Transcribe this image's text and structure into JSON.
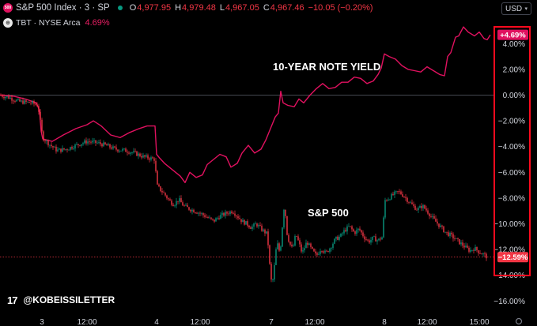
{
  "header": {
    "main_symbol": {
      "badge_label": "500",
      "title": "S&P 500 Index · 3 · SP",
      "status_color": "#089981",
      "open_label": "O",
      "open": "4,977.95",
      "high_label": "H",
      "high": "4,979.48",
      "low_label": "L",
      "low": "4,967.05",
      "close_label": "C",
      "close": "4,967.46",
      "change": "−10.05 (−0.20%)"
    },
    "compare_symbol": {
      "badge_label": "⊕",
      "title": "TBT · NYSE Arca",
      "change": "4.69%"
    },
    "currency": "USD",
    "currency_chevron": "chevron-down-icon"
  },
  "watermark": {
    "logo_text": "17",
    "handle": "@KOBEISSILETTER"
  },
  "chart_data": {
    "type": "line",
    "x": [
      "3",
      "12:00",
      "4",
      "12:00",
      "7",
      "12:00",
      "8",
      "12:00",
      "15:00"
    ],
    "ylim": [
      -17,
      5.5
    ],
    "yticks": [
      "4.00%",
      "2.00%",
      "0.00%",
      "−2.00%",
      "−4.00%",
      "−6.00%",
      "−8.00%",
      "−10.00%",
      "−12.00%",
      "−14.00%",
      "−16.00%"
    ],
    "grid": false,
    "colors": {
      "tbt": "#e0115f",
      "spx_up": "#089981",
      "spx_down": "#f23645",
      "highlight": "#ff0a1e"
    },
    "series": [
      {
        "label": "10-YEAR NOTE YIELD",
        "last_label": "+4.69%",
        "points": [
          [
            0,
            0.0
          ],
          [
            18,
            -0.1
          ],
          [
            32,
            -0.3
          ],
          [
            46,
            -0.6
          ],
          [
            50,
            -1.2
          ],
          [
            52,
            -2.8
          ],
          [
            54,
            -3.4
          ],
          [
            66,
            -3.6
          ],
          [
            80,
            -3.1
          ],
          [
            96,
            -2.6
          ],
          [
            110,
            -2.3
          ],
          [
            118,
            -2.0
          ],
          [
            128,
            -2.4
          ],
          [
            140,
            -3.1
          ],
          [
            152,
            -3.3
          ],
          [
            164,
            -2.9
          ],
          [
            176,
            -2.6
          ],
          [
            186,
            -2.4
          ],
          [
            196,
            -2.4
          ],
          [
            198,
            -4.6
          ],
          [
            202,
            -4.9
          ],
          [
            208,
            -5.3
          ],
          [
            214,
            -5.6
          ],
          [
            220,
            -5.9
          ],
          [
            228,
            -6.3
          ],
          [
            234,
            -6.8
          ],
          [
            240,
            -6.0
          ],
          [
            248,
            -6.4
          ],
          [
            256,
            -6.2
          ],
          [
            262,
            -5.4
          ],
          [
            270,
            -5.0
          ],
          [
            278,
            -4.6
          ],
          [
            286,
            -4.8
          ],
          [
            292,
            -5.6
          ],
          [
            300,
            -5.3
          ],
          [
            306,
            -4.5
          ],
          [
            314,
            -3.9
          ],
          [
            322,
            -4.5
          ],
          [
            330,
            -4.2
          ],
          [
            336,
            -3.5
          ],
          [
            342,
            -2.6
          ],
          [
            348,
            -1.7
          ],
          [
            352,
            -1.4
          ],
          [
            355,
            0.3
          ],
          [
            358,
            -0.6
          ],
          [
            364,
            -0.8
          ],
          [
            372,
            -0.9
          ],
          [
            378,
            -0.3
          ],
          [
            384,
            -0.6
          ],
          [
            392,
            0.0
          ],
          [
            400,
            0.5
          ],
          [
            408,
            0.9
          ],
          [
            416,
            0.5
          ],
          [
            424,
            0.6
          ],
          [
            432,
            1.0
          ],
          [
            440,
            1.0
          ],
          [
            448,
            1.4
          ],
          [
            456,
            1.3
          ],
          [
            464,
            0.9
          ],
          [
            472,
            1.1
          ],
          [
            478,
            1.6
          ],
          [
            482,
            2.1
          ],
          [
            486,
            3.2
          ],
          [
            492,
            3.0
          ],
          [
            500,
            2.8
          ],
          [
            508,
            2.3
          ],
          [
            516,
            2.0
          ],
          [
            524,
            1.9
          ],
          [
            532,
            1.8
          ],
          [
            540,
            2.2
          ],
          [
            548,
            1.9
          ],
          [
            556,
            1.6
          ],
          [
            562,
            1.5
          ],
          [
            566,
            3.0
          ],
          [
            570,
            3.3
          ],
          [
            576,
            4.5
          ],
          [
            580,
            4.6
          ],
          [
            586,
            5.3
          ],
          [
            592,
            4.9
          ],
          [
            600,
            4.6
          ],
          [
            606,
            4.9
          ],
          [
            612,
            4.4
          ],
          [
            616,
            4.3
          ],
          [
            620,
            4.69
          ]
        ]
      },
      {
        "label": "S&P 500",
        "last_label": "−12.59%",
        "points": [
          [
            0,
            0.0
          ],
          [
            12,
            -0.2
          ],
          [
            24,
            -0.5
          ],
          [
            40,
            -0.6
          ],
          [
            48,
            -0.8
          ],
          [
            52,
            -2.5
          ],
          [
            54,
            -3.3
          ],
          [
            62,
            -3.8
          ],
          [
            72,
            -4.3
          ],
          [
            84,
            -4.2
          ],
          [
            96,
            -3.9
          ],
          [
            110,
            -3.6
          ],
          [
            122,
            -3.7
          ],
          [
            134,
            -3.9
          ],
          [
            146,
            -4.2
          ],
          [
            158,
            -4.3
          ],
          [
            170,
            -4.5
          ],
          [
            182,
            -4.8
          ],
          [
            190,
            -4.9
          ],
          [
            196,
            -5.0
          ],
          [
            198,
            -7.0
          ],
          [
            202,
            -7.3
          ],
          [
            208,
            -7.7
          ],
          [
            214,
            -8.2
          ],
          [
            220,
            -8.5
          ],
          [
            226,
            -8.1
          ],
          [
            232,
            -8.6
          ],
          [
            238,
            -8.8
          ],
          [
            246,
            -9.0
          ],
          [
            254,
            -9.2
          ],
          [
            262,
            -9.5
          ],
          [
            270,
            -9.8
          ],
          [
            278,
            -9.4
          ],
          [
            286,
            -9.2
          ],
          [
            294,
            -9.0
          ],
          [
            300,
            -9.4
          ],
          [
            306,
            -9.8
          ],
          [
            312,
            -10.0
          ],
          [
            318,
            -10.3
          ],
          [
            324,
            -10.0
          ],
          [
            332,
            -10.5
          ],
          [
            338,
            -10.8
          ],
          [
            342,
            -14.0
          ],
          [
            344,
            -14.8
          ],
          [
            346,
            -13.9
          ],
          [
            348,
            -12.7
          ],
          [
            350,
            -11.4
          ],
          [
            354,
            -12.3
          ],
          [
            356,
            -11.0
          ],
          [
            358,
            -9.4
          ],
          [
            360,
            -8.2
          ],
          [
            362,
            -10.5
          ],
          [
            366,
            -11.5
          ],
          [
            370,
            -12.0
          ],
          [
            374,
            -10.8
          ],
          [
            378,
            -11.5
          ],
          [
            382,
            -12.3
          ],
          [
            388,
            -11.4
          ],
          [
            394,
            -12.0
          ],
          [
            400,
            -12.5
          ],
          [
            406,
            -11.9
          ],
          [
            412,
            -12.3
          ],
          [
            418,
            -11.8
          ],
          [
            424,
            -11.2
          ],
          [
            430,
            -11.0
          ],
          [
            436,
            -10.5
          ],
          [
            442,
            -10.2
          ],
          [
            448,
            -10.7
          ],
          [
            454,
            -10.4
          ],
          [
            460,
            -11.0
          ],
          [
            466,
            -11.4
          ],
          [
            472,
            -11.1
          ],
          [
            478,
            -11.3
          ],
          [
            484,
            -11.0
          ],
          [
            486,
            -8.2
          ],
          [
            492,
            -8.0
          ],
          [
            498,
            -7.7
          ],
          [
            504,
            -7.5
          ],
          [
            510,
            -7.8
          ],
          [
            516,
            -8.2
          ],
          [
            522,
            -8.6
          ],
          [
            528,
            -8.9
          ],
          [
            534,
            -8.6
          ],
          [
            540,
            -9.0
          ],
          [
            546,
            -9.5
          ],
          [
            552,
            -9.9
          ],
          [
            558,
            -10.3
          ],
          [
            564,
            -10.7
          ],
          [
            570,
            -10.9
          ],
          [
            576,
            -11.2
          ],
          [
            582,
            -11.5
          ],
          [
            588,
            -11.8
          ],
          [
            594,
            -12.1
          ],
          [
            600,
            -11.9
          ],
          [
            606,
            -12.2
          ],
          [
            612,
            -12.4
          ],
          [
            616,
            -12.59
          ]
        ]
      }
    ]
  }
}
